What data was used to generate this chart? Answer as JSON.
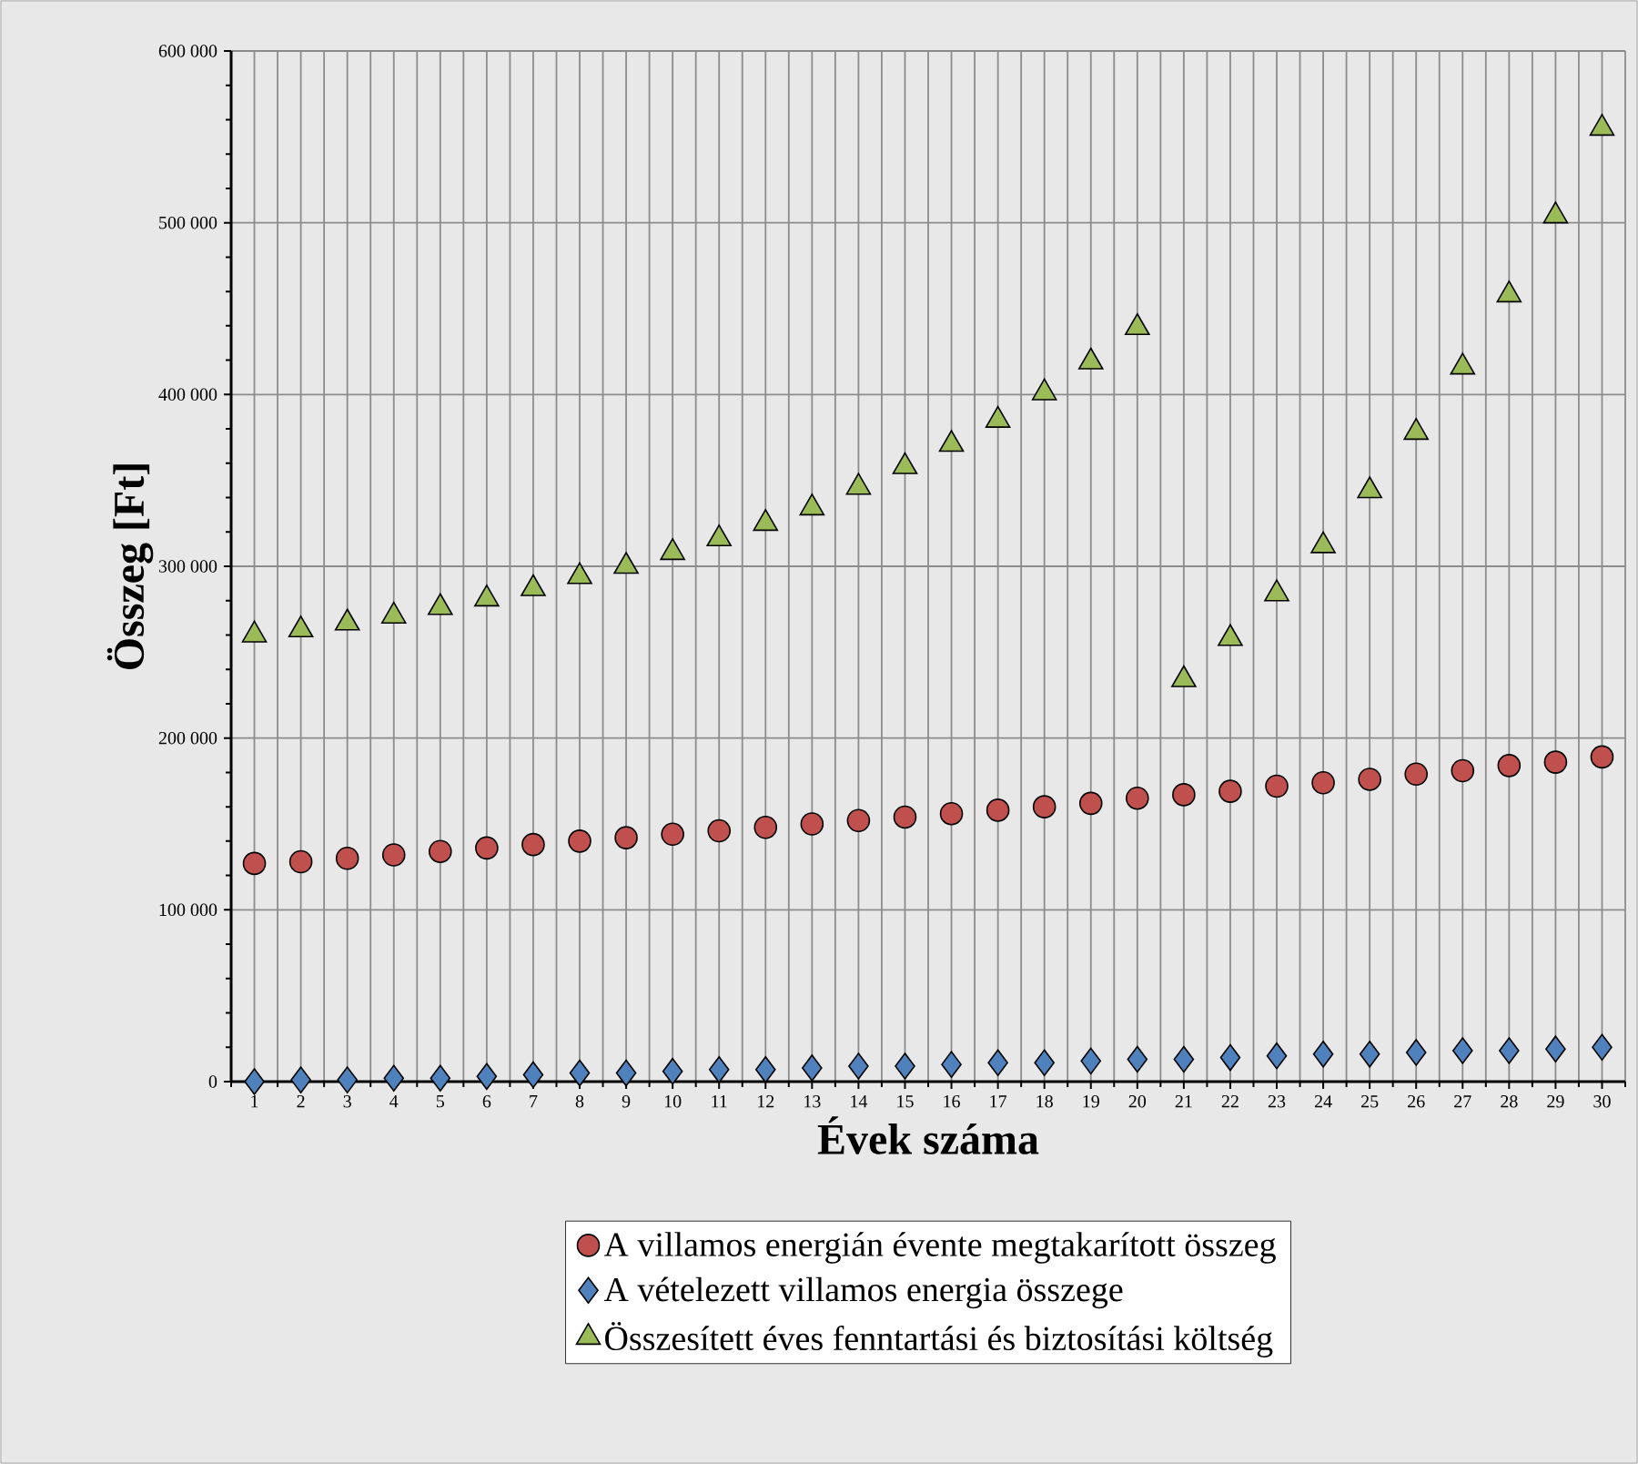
{
  "chart_data": {
    "type": "scatter",
    "xlabel": "Évek száma",
    "ylabel": "Összeg [Ft]",
    "categories": [
      "1",
      "2",
      "3",
      "4",
      "5",
      "6",
      "7",
      "8",
      "9",
      "10",
      "11",
      "12",
      "13",
      "14",
      "15",
      "16",
      "17",
      "18",
      "19",
      "20",
      "21",
      "22",
      "23",
      "24",
      "25",
      "26",
      "27",
      "28",
      "29",
      "30"
    ],
    "ylim": [
      0,
      600000
    ],
    "yticks": [
      {
        "value": 0,
        "label": "0"
      },
      {
        "value": 100000,
        "label": "100 000"
      },
      {
        "value": 200000,
        "label": "200 000"
      },
      {
        "value": 300000,
        "label": "300 000"
      },
      {
        "value": 400000,
        "label": "400 000"
      },
      {
        "value": 500000,
        "label": "500 000"
      },
      {
        "value": 600000,
        "label": "600 000"
      }
    ],
    "grid": true,
    "legend": "bottom",
    "series": [
      {
        "name": "A villamos energián évente megtakarított összeg",
        "color": "#c0504d",
        "marker": "circle",
        "values": [
          127000,
          128000,
          130000,
          132000,
          134000,
          136000,
          138000,
          140000,
          142000,
          144000,
          146000,
          148000,
          150000,
          152000,
          154000,
          156000,
          158000,
          160000,
          162000,
          165000,
          167000,
          169000,
          172000,
          174000,
          176000,
          179000,
          181000,
          184000,
          186000,
          189000
        ]
      },
      {
        "name": "A vételezett villamos energia összege",
        "color": "#4f81bd",
        "marker": "diamond",
        "values": [
          0,
          1000,
          1000,
          2000,
          2000,
          3000,
          4000,
          5000,
          5000,
          6000,
          7000,
          7000,
          8000,
          9000,
          9000,
          10000,
          11000,
          11000,
          12000,
          13000,
          13000,
          14000,
          15000,
          16000,
          16000,
          17000,
          18000,
          18000,
          19000,
          20000
        ]
      },
      {
        "name": "Összesített éves fenntartási és biztosítási költség",
        "color": "#9bbb59",
        "marker": "triangle",
        "values": [
          260000,
          263000,
          267000,
          271000,
          276000,
          281000,
          287000,
          294000,
          300000,
          308000,
          316000,
          325000,
          334000,
          346000,
          358000,
          371000,
          385000,
          401000,
          419000,
          439000,
          234000,
          258000,
          284000,
          312000,
          344000,
          378000,
          416000,
          458000,
          504000,
          555000
        ]
      }
    ]
  }
}
